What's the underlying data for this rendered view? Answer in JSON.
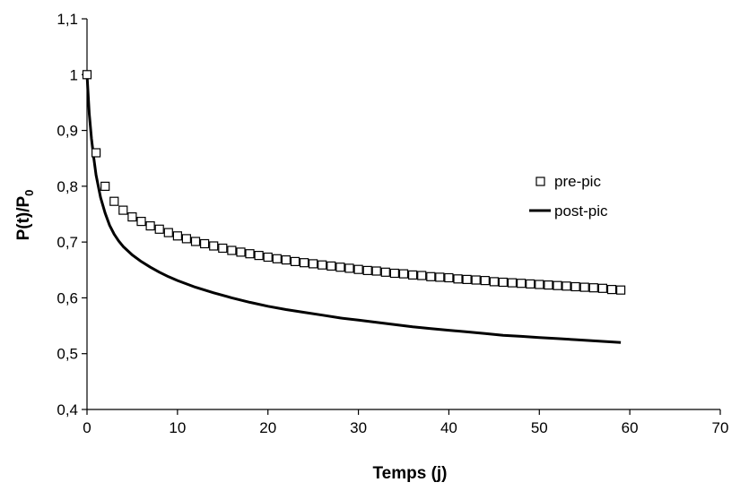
{
  "chart_data": {
    "type": "line",
    "title": "",
    "xlabel": "Temps (j)",
    "ylabel": {
      "main": "P(t)/P",
      "subscript": "0"
    },
    "xlim": [
      0,
      70
    ],
    "ylim": [
      0.4,
      1.1
    ],
    "x_ticks": [
      0,
      10,
      20,
      30,
      40,
      50,
      60,
      70
    ],
    "y_ticks": [
      0.4,
      0.5,
      0.6,
      0.7,
      0.8,
      0.9,
      1.0,
      1.1
    ],
    "x_tick_labels": [
      "0",
      "10",
      "20",
      "30",
      "40",
      "50",
      "60",
      "70"
    ],
    "y_tick_labels": [
      "0,4",
      "0,5",
      "0,6",
      "0,7",
      "0,8",
      "0,9",
      "1",
      "1,1"
    ],
    "grid": false,
    "legend": "right",
    "series": [
      {
        "name": "pre-pic",
        "style": "open-square-markers",
        "color": "#000000",
        "x": [
          0,
          1,
          2,
          3,
          4,
          5,
          6,
          7,
          8,
          9,
          10,
          11,
          12,
          13,
          14,
          15,
          16,
          17,
          18,
          19,
          20,
          21,
          22,
          23,
          24,
          25,
          26,
          27,
          28,
          29,
          30,
          31,
          32,
          33,
          34,
          35,
          36,
          37,
          38,
          39,
          40,
          41,
          42,
          43,
          44,
          45,
          46,
          47,
          48,
          49,
          50,
          51,
          52,
          53,
          54,
          55,
          56,
          57,
          58,
          59
        ],
        "y": [
          1.0,
          0.86,
          0.8,
          0.773,
          0.757,
          0.745,
          0.737,
          0.729,
          0.723,
          0.717,
          0.711,
          0.706,
          0.701,
          0.697,
          0.693,
          0.689,
          0.685,
          0.682,
          0.679,
          0.676,
          0.673,
          0.67,
          0.668,
          0.665,
          0.663,
          0.661,
          0.659,
          0.657,
          0.655,
          0.653,
          0.651,
          0.649,
          0.648,
          0.646,
          0.644,
          0.643,
          0.641,
          0.64,
          0.638,
          0.637,
          0.636,
          0.634,
          0.633,
          0.632,
          0.631,
          0.629,
          0.628,
          0.627,
          0.626,
          0.625,
          0.624,
          0.623,
          0.622,
          0.621,
          0.62,
          0.619,
          0.618,
          0.617,
          0.615,
          0.614
        ]
      },
      {
        "name": "post-pic",
        "style": "solid-line",
        "color": "#000000",
        "x": [
          0,
          0.25,
          0.5,
          0.75,
          1,
          1.5,
          2,
          2.5,
          3,
          3.5,
          4,
          5,
          6,
          7,
          8,
          9,
          10,
          12,
          14,
          16,
          18,
          20,
          22,
          24,
          26,
          28,
          30,
          32,
          34,
          36,
          38,
          40,
          42,
          44,
          46,
          48,
          50,
          52,
          54,
          56,
          58,
          59
        ],
        "y": [
          1.0,
          0.93,
          0.885,
          0.85,
          0.82,
          0.78,
          0.752,
          0.73,
          0.714,
          0.702,
          0.692,
          0.677,
          0.665,
          0.655,
          0.646,
          0.638,
          0.631,
          0.619,
          0.609,
          0.6,
          0.592,
          0.585,
          0.579,
          0.574,
          0.569,
          0.564,
          0.56,
          0.556,
          0.552,
          0.548,
          0.545,
          0.542,
          0.539,
          0.536,
          0.533,
          0.531,
          0.529,
          0.527,
          0.525,
          0.523,
          0.521,
          0.52
        ]
      }
    ]
  }
}
